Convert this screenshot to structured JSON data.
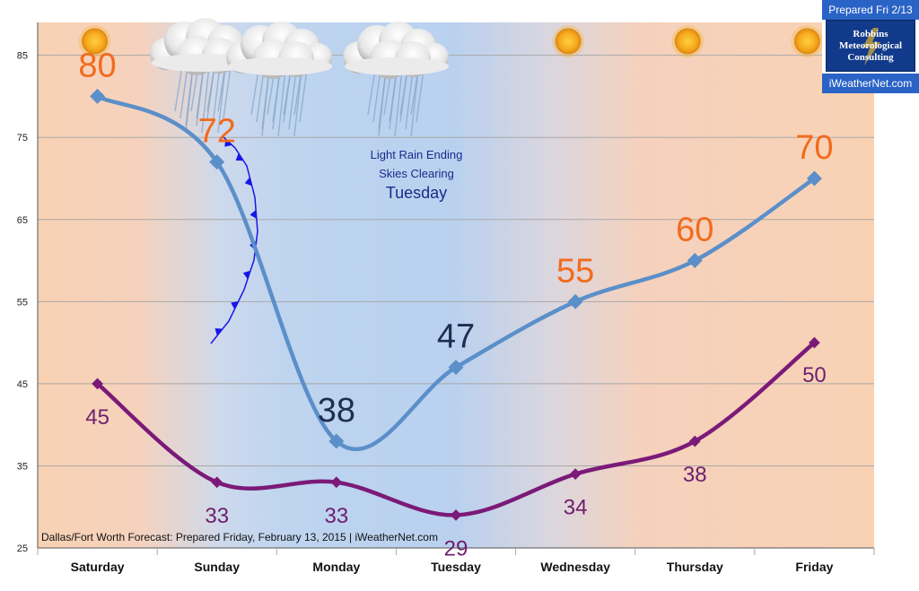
{
  "chart_data": {
    "type": "line",
    "categories": [
      "Saturday",
      "Sunday",
      "Monday",
      "Tuesday",
      "Wednesday",
      "Thursday",
      "Friday"
    ],
    "series": [
      {
        "name": "",
        "color": "#5b8fc9",
        "values": [
          80,
          72,
          38,
          47,
          55,
          60,
          70
        ],
        "labels": [
          "80",
          "72",
          "38",
          "47",
          "55",
          "60",
          "70"
        ]
      },
      {
        "name": "",
        "color": "#7b1a78",
        "values": [
          45,
          33,
          33,
          29,
          34,
          38,
          50
        ],
        "labels": [
          "45",
          "33",
          "33",
          "29",
          "34",
          "38",
          "50"
        ]
      }
    ],
    "yticks": [
      "25",
      "35",
      "45",
      "55",
      "65",
      "75",
      "85"
    ],
    "ylim": [
      25,
      89
    ],
    "grid": true,
    "annotation": {
      "line1": "Light Rain Ending",
      "line2": "Skies Clearing",
      "line3": "Tuesday"
    },
    "footer": "Dallas/Fort Worth Forecast: Prepared Friday, February 13, 2015 | iWeatherNet.com",
    "weather_icons": [
      "sun-icon",
      "rain-cloud-icon",
      "rain-cloud-icon",
      "rain-cloud-icon",
      "sun-icon",
      "sun-icon",
      "sun-icon"
    ],
    "colors": {
      "high_label": "#f26b1d",
      "low_label": "#6e1f6e",
      "low_temp_text": "#1f2d4e",
      "warm_bg": "#f9d2b4",
      "cool_bg": "#bcd3ef",
      "front": "#1616e8"
    }
  },
  "badge": {
    "prepared": "Prepared Fri 2/13",
    "logo_lines": [
      "Robbins",
      "Meteorological",
      "Consulting"
    ],
    "site": "iWeatherNet.com",
    "colors": {
      "bar": "#2a63c6",
      "logo": "#123a8a",
      "bolt": "#c8a43a"
    }
  }
}
